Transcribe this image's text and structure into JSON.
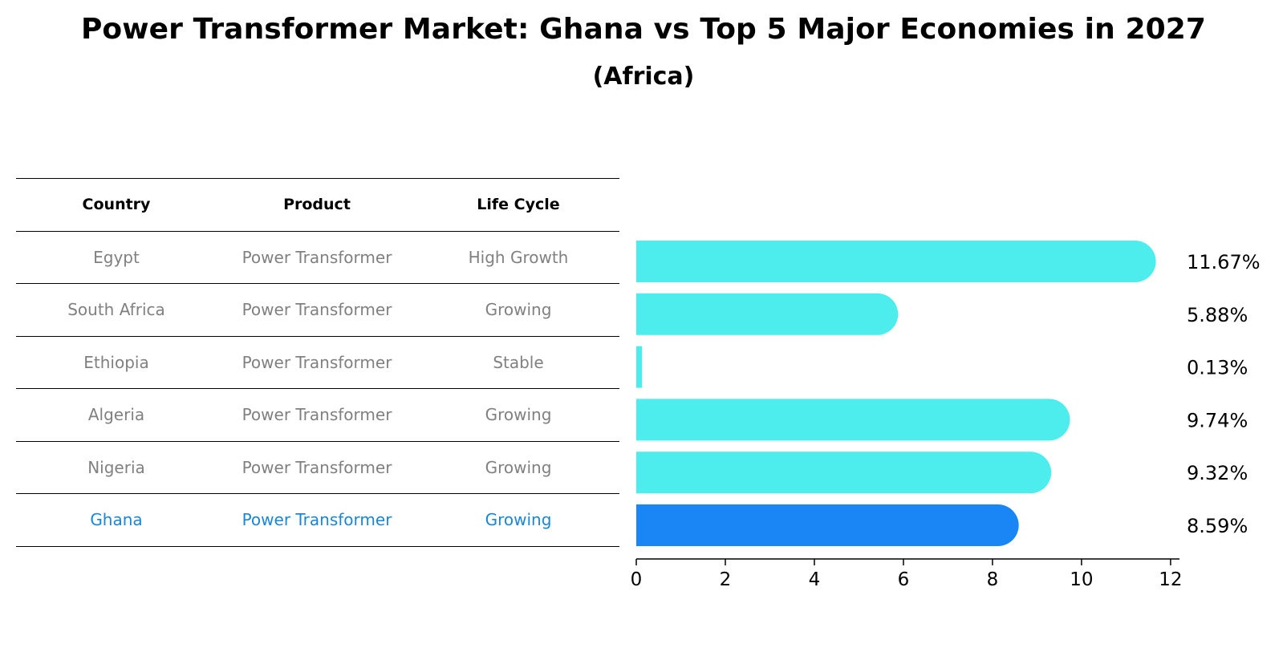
{
  "title": "Power Transformer Market: Ghana vs Top 5 Major Economies in 2027",
  "subtitle": "(Africa)",
  "table": {
    "headers": [
      "Country",
      "Product",
      "Life Cycle"
    ],
    "rows": [
      {
        "country": "Egypt",
        "product": "Power Transformer",
        "life_cycle": "High Growth"
      },
      {
        "country": "South Africa",
        "product": "Power Transformer",
        "life_cycle": "Growing"
      },
      {
        "country": "Ethiopia",
        "product": "Power Transformer",
        "life_cycle": "Stable"
      },
      {
        "country": "Algeria",
        "product": "Power Transformer",
        "life_cycle": "Growing"
      },
      {
        "country": "Nigeria",
        "product": "Power Transformer",
        "life_cycle": "Growing"
      },
      {
        "country": "Ghana",
        "product": "Power Transformer",
        "life_cycle": "Growing"
      }
    ]
  },
  "chart_data": {
    "type": "bar",
    "orientation": "horizontal",
    "title": "Power Transformer Market: Ghana vs Top 5 Major Economies in 2027",
    "subtitle": "(Africa)",
    "categories": [
      "Egypt",
      "South Africa",
      "Ethiopia",
      "Algeria",
      "Nigeria",
      "Ghana"
    ],
    "values": [
      11.67,
      5.88,
      0.13,
      9.74,
      9.32,
      8.59
    ],
    "labels": [
      "11.67%",
      "5.88%",
      "0.13%",
      "9.74%",
      "9.32%",
      "8.59%"
    ],
    "highlight": "Ghana",
    "xlim": [
      0,
      12.2
    ],
    "xticks": [
      0,
      2,
      4,
      6,
      8,
      10,
      12
    ],
    "xlabel": "",
    "ylabel": "",
    "grid": false,
    "colors": {
      "bar": "#4eeded",
      "highlight_bar": "#1a86f5",
      "highlight_text": "#1a86d6",
      "table_text": "#808080"
    }
  }
}
